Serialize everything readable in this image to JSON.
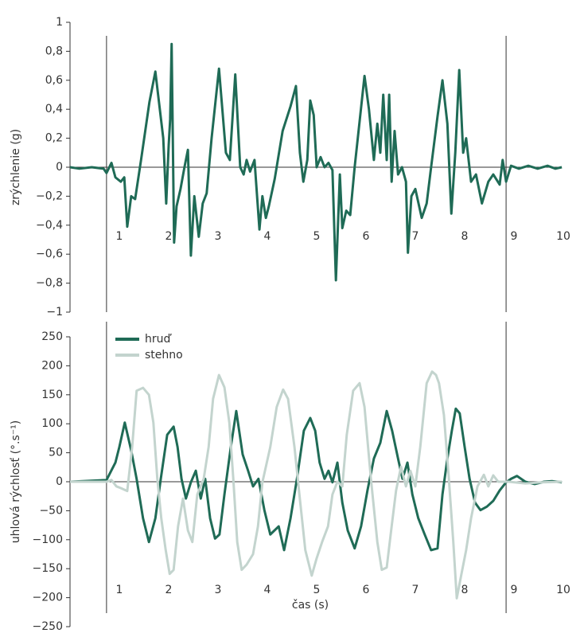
{
  "chart_data": [
    {
      "type": "line",
      "ylabel": "zrýchlenie (g)",
      "xlim": [
        0,
        10
      ],
      "ylim": [
        -1,
        1
      ],
      "xticks": [
        1,
        2,
        3,
        4,
        5,
        6,
        7,
        8,
        9,
        10
      ],
      "yticks": [
        {
          "value": -1,
          "label": "−1"
        },
        {
          "value": -0.8,
          "label": "−0,8"
        },
        {
          "value": -0.6,
          "label": "−0,6"
        },
        {
          "value": -0.4,
          "label": "−0,4"
        },
        {
          "value": -0.2,
          "label": "−0,2"
        },
        0,
        {
          "value": 0.2,
          "label": "0,2"
        },
        {
          "value": 0.4,
          "label": "0,4"
        },
        {
          "value": 0.6,
          "label": "0,6"
        },
        {
          "value": 0.8,
          "label": "0,8"
        },
        1
      ],
      "vlines": [
        0.74,
        8.84
      ],
      "series": [
        {
          "color": "#1f6b56",
          "x": [
            0,
            0.19,
            0.44,
            0.68,
            0.74,
            0.84,
            0.92,
            1.03,
            1.1,
            1.16,
            1.24,
            1.32,
            1.44,
            1.61,
            1.73,
            1.89,
            1.95,
            2.0,
            2.03,
            2.06,
            2.11,
            2.16,
            2.24,
            2.32,
            2.39,
            2.45,
            2.52,
            2.61,
            2.69,
            2.77,
            2.87,
            3.02,
            3.16,
            3.24,
            3.35,
            3.45,
            3.52,
            3.58,
            3.65,
            3.74,
            3.84,
            3.9,
            3.97,
            4.03,
            4.15,
            4.31,
            4.47,
            4.58,
            4.66,
            4.73,
            4.81,
            4.87,
            4.94,
            5.0,
            5.08,
            5.16,
            5.24,
            5.32,
            5.39,
            5.47,
            5.52,
            5.6,
            5.68,
            5.77,
            5.97,
            6.06,
            6.16,
            6.23,
            6.29,
            6.35,
            6.42,
            6.47,
            6.52,
            6.58,
            6.65,
            6.73,
            6.81,
            6.85,
            6.92,
            7.0,
            7.13,
            7.23,
            7.32,
            7.45,
            7.55,
            7.65,
            7.73,
            7.81,
            7.89,
            7.97,
            8.03,
            8.13,
            8.23,
            8.35,
            8.48,
            8.58,
            8.71,
            8.77,
            8.84,
            8.94,
            9.1,
            9.29,
            9.48,
            9.68,
            9.84,
            9.97
          ],
          "values": [
            0,
            -0.01,
            0,
            -0.01,
            -0.04,
            0.03,
            -0.07,
            -0.1,
            -0.07,
            -0.41,
            -0.2,
            -0.22,
            0.05,
            0.45,
            0.66,
            0.2,
            -0.25,
            0.15,
            0.33,
            0.85,
            -0.52,
            -0.27,
            -0.15,
            0,
            0.12,
            -0.61,
            -0.2,
            -0.48,
            -0.25,
            -0.18,
            0.2,
            0.68,
            0.1,
            0.05,
            0.64,
            0,
            -0.05,
            0.05,
            -0.03,
            0.05,
            -0.43,
            -0.2,
            -0.35,
            -0.27,
            -0.08,
            0.25,
            0.42,
            0.56,
            0.1,
            -0.1,
            0.05,
            0.46,
            0.36,
            0,
            0.07,
            0,
            0.03,
            -0.02,
            -0.78,
            -0.05,
            -0.42,
            -0.3,
            -0.33,
            0,
            0.63,
            0.4,
            0.05,
            0.3,
            0.1,
            0.5,
            0.05,
            0.5,
            -0.1,
            0.25,
            -0.05,
            0,
            -0.1,
            -0.59,
            -0.2,
            -0.15,
            -0.35,
            -0.25,
            0,
            0.35,
            0.6,
            0.3,
            -0.32,
            0.1,
            0.67,
            0.1,
            0.2,
            -0.1,
            -0.05,
            -0.25,
            -0.1,
            -0.05,
            -0.12,
            0.05,
            -0.1,
            0.01,
            -0.01,
            0.01,
            -0.01,
            0.01,
            -0.01,
            0
          ]
        }
      ]
    },
    {
      "type": "line",
      "ylabel": "uhlová rýchlosť (°.s⁻¹)",
      "xlabel": "čas (s)",
      "xlim": [
        0,
        10
      ],
      "ylim": [
        -250,
        250
      ],
      "xticks": [
        1,
        2,
        3,
        4,
        5,
        6,
        7,
        8,
        9,
        10
      ],
      "yticks": [
        {
          "value": -250,
          "label": "−250"
        },
        {
          "value": -200,
          "label": "−200"
        },
        {
          "value": -150,
          "label": "−150"
        },
        {
          "value": -100,
          "label": "−100"
        },
        {
          "value": -50,
          "label": "−50"
        },
        0,
        50,
        100,
        150,
        200,
        250
      ],
      "vlines": [
        0.74,
        8.84
      ],
      "legend": "upper left",
      "series": [
        {
          "name": "hruď",
          "color": "#1f6b56",
          "x": [
            0,
            0.74,
            0.92,
            1.0,
            1.11,
            1.24,
            1.35,
            1.48,
            1.6,
            1.73,
            1.84,
            1.97,
            2.1,
            2.18,
            2.26,
            2.35,
            2.45,
            2.55,
            2.65,
            2.74,
            2.84,
            2.94,
            3.03,
            3.13,
            3.26,
            3.37,
            3.5,
            3.61,
            3.71,
            3.82,
            3.94,
            4.06,
            4.23,
            4.34,
            4.47,
            4.6,
            4.74,
            4.87,
            4.97,
            5.06,
            5.16,
            5.24,
            5.32,
            5.42,
            5.52,
            5.63,
            5.77,
            5.9,
            6.03,
            6.16,
            6.29,
            6.42,
            6.53,
            6.65,
            6.74,
            6.84,
            6.94,
            7.06,
            7.19,
            7.32,
            7.45,
            7.55,
            7.65,
            7.74,
            7.82,
            7.9,
            8.0,
            8.1,
            8.21,
            8.32,
            8.45,
            8.58,
            8.71,
            8.84,
            8.94,
            9.06,
            9.23,
            9.42,
            9.61,
            9.77,
            9.97
          ],
          "values": [
            0,
            3,
            33,
            60,
            102,
            54,
            5,
            -63,
            -104,
            -63,
            5,
            81,
            95,
            60,
            5,
            -29,
            -1,
            19,
            -29,
            5,
            -63,
            -98,
            -91,
            -22,
            60,
            122,
            47,
            19,
            -8,
            5,
            -49,
            -91,
            -77,
            -118,
            -63,
            5,
            88,
            110,
            88,
            33,
            5,
            19,
            -1,
            33,
            -36,
            -84,
            -115,
            -77,
            -15,
            40,
            67,
            122,
            88,
            40,
            5,
            33,
            -22,
            -63,
            -91,
            -118,
            -115,
            -22,
            40,
            88,
            126,
            118,
            60,
            5,
            -36,
            -49,
            -43,
            -33,
            -15,
            -1,
            5,
            10,
            0,
            -4,
            0,
            1,
            -1
          ]
        },
        {
          "name": "stehno",
          "color": "#c3d4ce",
          "x": [
            0,
            0.74,
            0.84,
            0.94,
            1.03,
            1.16,
            1.26,
            1.35,
            1.48,
            1.6,
            1.69,
            1.77,
            1.85,
            1.94,
            2.02,
            2.1,
            2.19,
            2.29,
            2.39,
            2.48,
            2.58,
            2.71,
            2.81,
            2.9,
            3.02,
            3.13,
            3.23,
            3.31,
            3.39,
            3.48,
            3.58,
            3.71,
            3.81,
            3.9,
            4.06,
            4.19,
            4.32,
            4.42,
            4.55,
            4.65,
            4.77,
            4.9,
            5.0,
            5.11,
            5.23,
            5.32,
            5.42,
            5.52,
            5.61,
            5.74,
            5.87,
            5.97,
            6.1,
            6.23,
            6.32,
            6.42,
            6.52,
            6.61,
            6.71,
            6.81,
            6.9,
            7.0,
            7.1,
            7.23,
            7.34,
            7.42,
            7.48,
            7.58,
            7.68,
            7.77,
            7.84,
            7.94,
            8.03,
            8.13,
            8.26,
            8.39,
            8.48,
            8.58,
            8.68,
            8.9,
            9.23,
            9.55,
            9.97
          ],
          "values": [
            0,
            0,
            3,
            -8,
            -11,
            -16,
            60,
            157,
            162,
            150,
            102,
            5,
            -63,
            -118,
            -159,
            -152,
            -77,
            -29,
            -84,
            -104,
            -22,
            5,
            60,
            143,
            184,
            163,
            102,
            5,
            -104,
            -152,
            -143,
            -125,
            -77,
            -1,
            60,
            129,
            159,
            143,
            60,
            -22,
            -118,
            -162,
            -132,
            -104,
            -77,
            -22,
            0,
            -8,
            81,
            157,
            170,
            129,
            5,
            -104,
            -152,
            -148,
            -77,
            -15,
            26,
            -8,
            19,
            -8,
            60,
            170,
            190,
            184,
            170,
            115,
            5,
            -104,
            -201,
            -157,
            -118,
            -63,
            -8,
            12,
            -8,
            11,
            0,
            0,
            -3,
            -1,
            0
          ]
        }
      ]
    }
  ]
}
